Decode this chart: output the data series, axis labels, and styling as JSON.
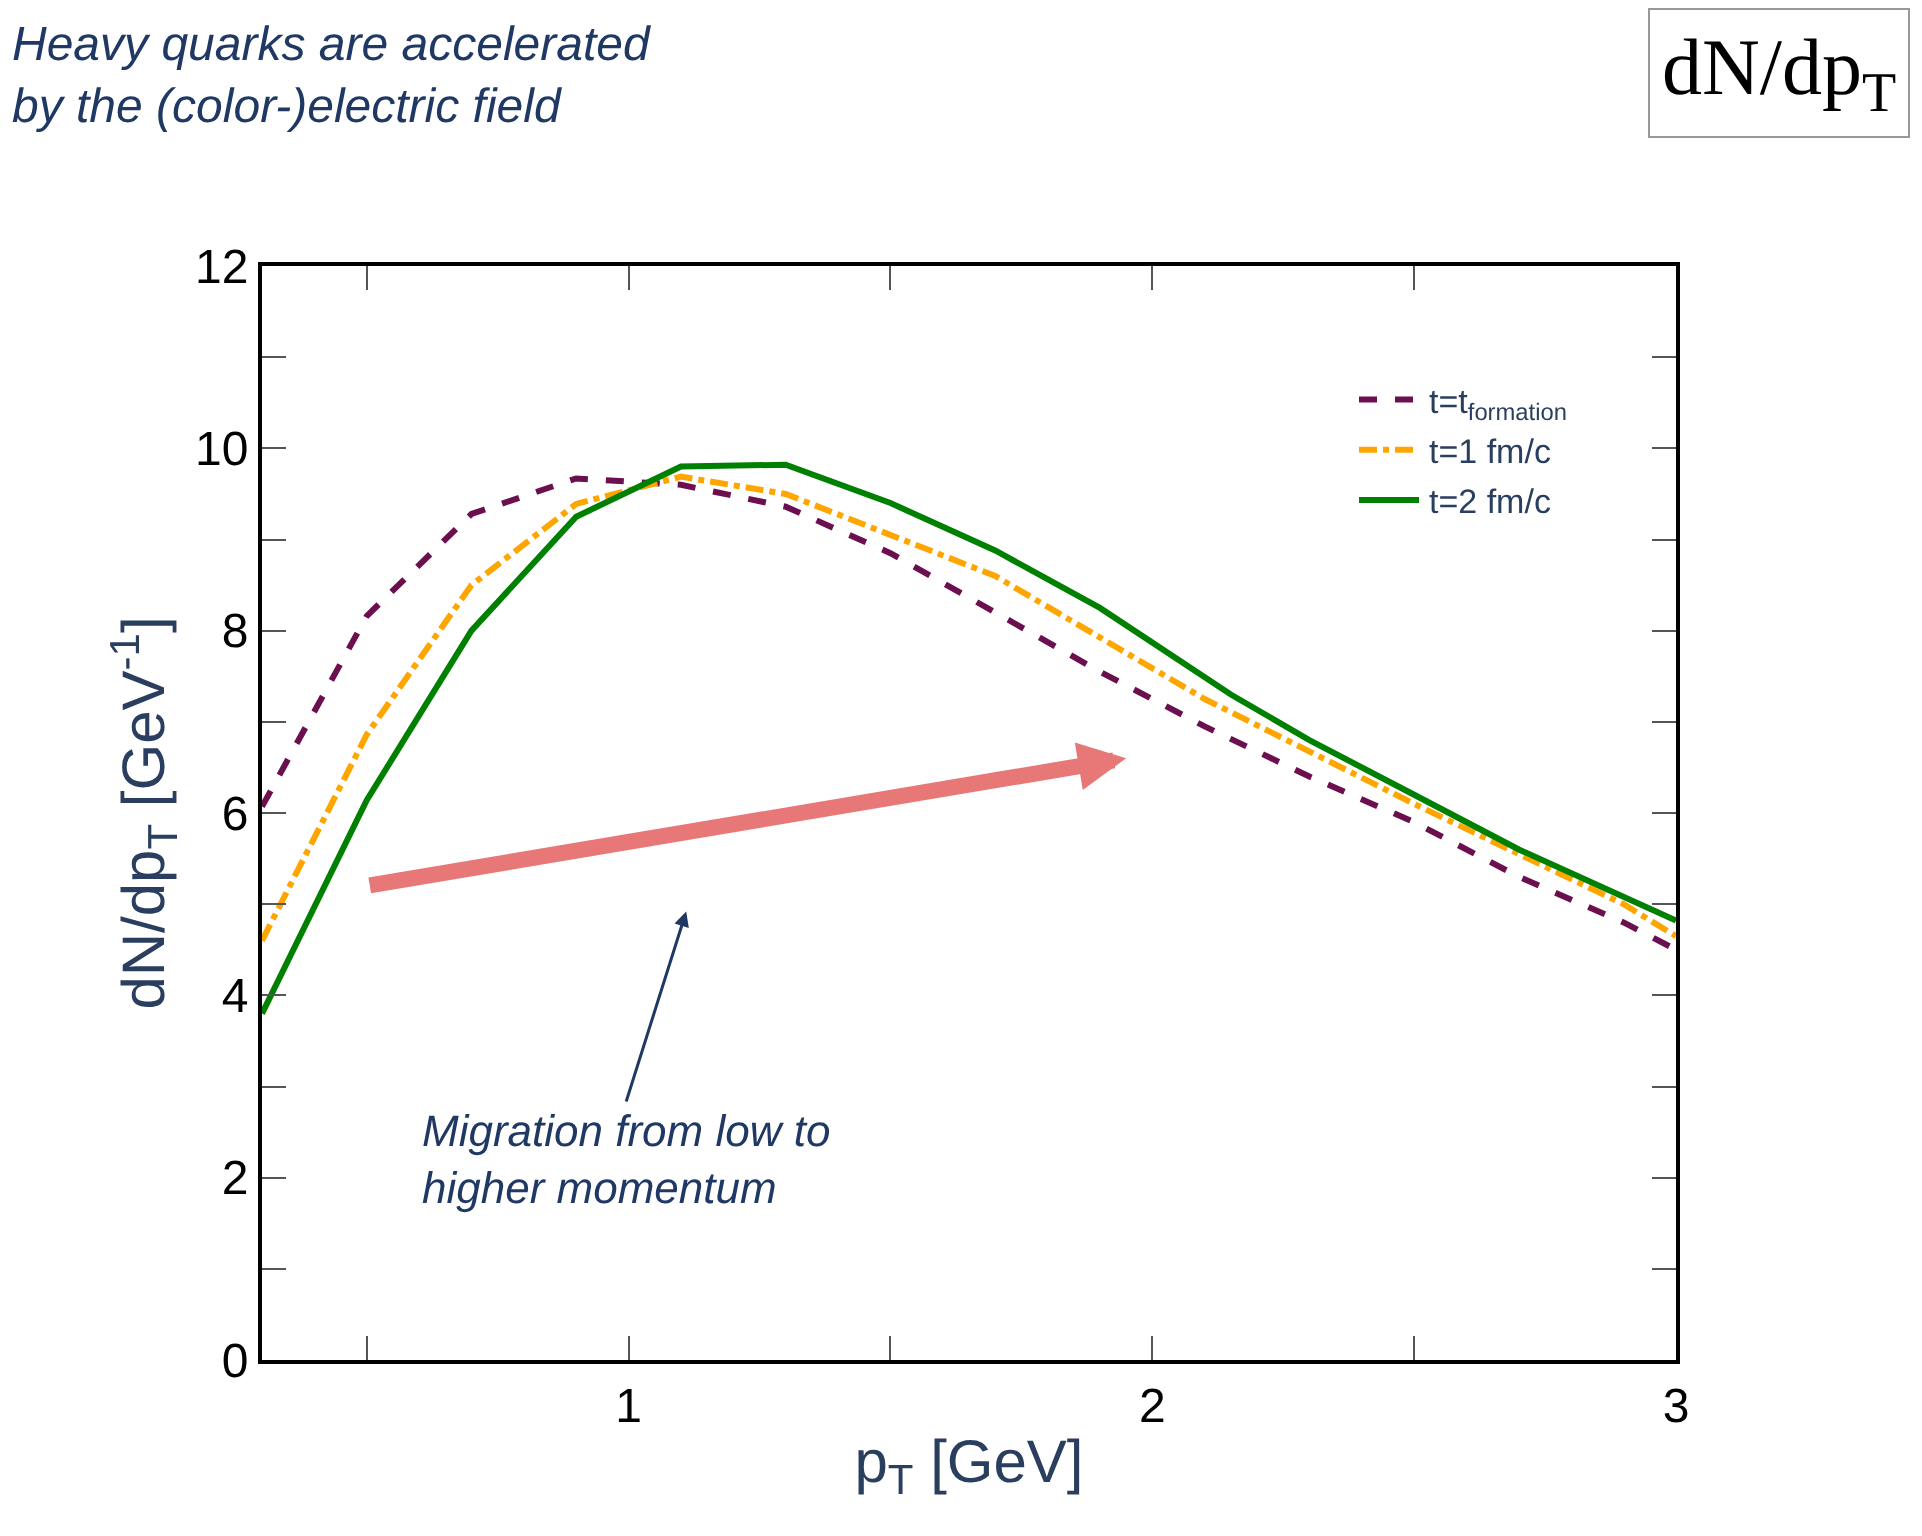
{
  "chart_data": {
    "type": "line",
    "xlabel": "p$_{T}$ [GeV]",
    "ylabel": "dN/dp$_{T}$ [GeV$^{-1}$]",
    "xlim": [
      0.3,
      3
    ],
    "ylim": [
      0,
      12
    ],
    "xticks": [
      {
        "value": 0.5,
        "label": null
      },
      1,
      {
        "value": 1.5,
        "label": null
      },
      2,
      {
        "value": 2.5,
        "label": null
      },
      3
    ],
    "yticks": [
      0,
      {
        "value": 1,
        "label": null
      },
      2,
      {
        "value": 3,
        "label": null
      },
      4,
      {
        "value": 5,
        "label": null
      },
      6,
      {
        "value": 7,
        "label": null
      },
      8,
      {
        "value": 9,
        "label": null
      },
      10,
      {
        "value": 11,
        "label": null
      },
      12
    ],
    "grid": false,
    "legend": "top right",
    "marker": "none",
    "series": [
      {
        "name": "t=t$_{formation}$",
        "color": "#6b0f4f",
        "line_style": "dashed",
        "x": [
          0.3,
          0.5,
          0.7,
          0.9,
          1.1,
          1.3,
          1.5,
          1.7,
          1.9,
          2.1,
          2.3,
          2.5,
          2.7,
          2.9,
          3.0
        ],
        "values": [
          6.07,
          8.16,
          9.28,
          9.67,
          9.6,
          9.36,
          8.85,
          8.2,
          7.55,
          6.95,
          6.4,
          5.9,
          5.3,
          4.8,
          4.5
        ]
      },
      {
        "name": "t=1 fm/c",
        "color": "#ffa500",
        "line_style": "dashdot",
        "x": [
          0.3,
          0.5,
          0.7,
          0.9,
          1.1,
          1.3,
          1.7,
          2.1,
          2.5,
          2.9,
          3.0
        ],
        "values": [
          4.6,
          6.86,
          8.5,
          9.39,
          9.69,
          9.5,
          8.6,
          7.25,
          6.1,
          5.0,
          4.65
        ]
      },
      {
        "name": "t=2 fm/c",
        "color": "#008000",
        "line_style": "solid",
        "x": [
          0.3,
          0.5,
          0.7,
          0.9,
          1.1,
          1.3,
          1.5,
          1.7,
          1.9,
          2.15,
          2.3,
          2.5,
          2.7,
          3.0
        ],
        "values": [
          3.8,
          6.14,
          8.0,
          9.25,
          9.8,
          9.82,
          9.4,
          8.88,
          8.25,
          7.3,
          6.8,
          6.2,
          5.6,
          4.82
        ]
      }
    ],
    "annotations": [
      "Heavy quarks are accelerated\nby the (color-)electric field",
      "dN/dp$_{T}$",
      "Migration from low to\nhigher momentum"
    ]
  }
}
